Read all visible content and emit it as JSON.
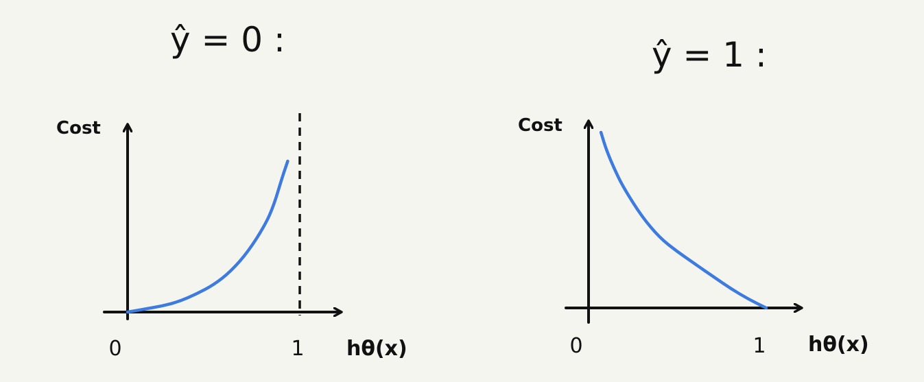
{
  "colors": {
    "background": "#f5f5ef",
    "axis": "#111111",
    "curve": "#3d7be0"
  },
  "chart_data": [
    {
      "type": "line",
      "title": "ŷ = 0 :",
      "ylabel": "Cost",
      "xlabel": "hθ(x)",
      "x_ticks": [
        "0",
        "1"
      ],
      "xlim": [
        0,
        1.15
      ],
      "ylim": [
        0,
        1.2
      ],
      "asymptote": {
        "x": 1,
        "style": "dashed"
      },
      "series": [
        {
          "x": [
            0,
            0.1,
            0.2,
            0.3,
            0.4,
            0.5,
            0.6,
            0.7,
            0.8,
            0.85,
            0.9,
            0.93
          ],
          "y": [
            0,
            0.02,
            0.04,
            0.07,
            0.12,
            0.18,
            0.27,
            0.4,
            0.58,
            0.71,
            0.9,
            1.0
          ]
        }
      ]
    },
    {
      "type": "line",
      "title": "ŷ = 1 :",
      "ylabel": "Cost",
      "xlabel": "hθ(x)",
      "x_ticks": [
        "0",
        "1"
      ],
      "xlim": [
        0,
        1.15
      ],
      "ylim": [
        0,
        1.2
      ],
      "series": [
        {
          "x": [
            0.07,
            0.1,
            0.15,
            0.2,
            0.3,
            0.4,
            0.5,
            0.6,
            0.7,
            0.8,
            0.9,
            1.0
          ],
          "y": [
            1.0,
            0.9,
            0.78,
            0.68,
            0.52,
            0.4,
            0.32,
            0.25,
            0.18,
            0.11,
            0.05,
            0.0
          ]
        }
      ]
    }
  ]
}
